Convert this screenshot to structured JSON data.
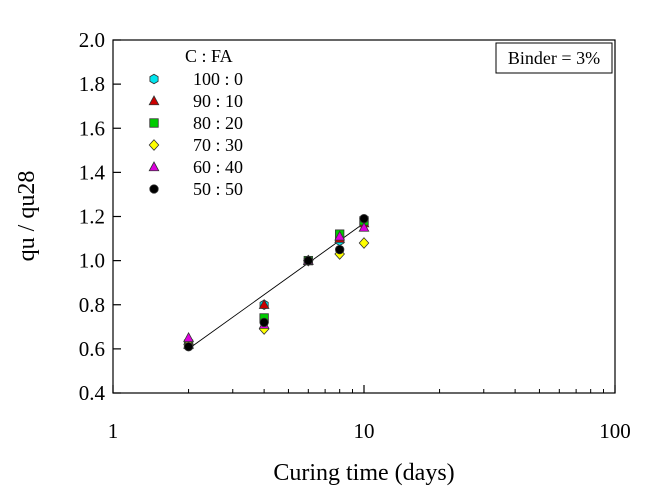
{
  "chart_data": {
    "type": "scatter",
    "title": "",
    "xlabel": "Curing time (days)",
    "ylabel": "qu / qu28",
    "xscale": "log",
    "xlim": [
      1,
      100
    ],
    "ylim": [
      0.4,
      2.0
    ],
    "x_ticks": [
      1,
      10,
      100
    ],
    "x_tick_labels": [
      "1",
      "10",
      "100"
    ],
    "y_ticks": [
      0.4,
      0.6,
      0.8,
      1.0,
      1.2,
      1.4,
      1.6,
      1.8,
      2.0
    ],
    "y_tick_labels": [
      "0.4",
      "0.6",
      "0.8",
      "1.0",
      "1.2",
      "1.4",
      "1.6",
      "1.8",
      "2.0"
    ],
    "grid": false,
    "legend": {
      "title": "C : FA",
      "position": "top-left"
    },
    "annotation": "Binder = 3%",
    "series": [
      {
        "name": "100 : 0",
        "marker": "hexagon",
        "color": "#00e5ee",
        "x": [
          2,
          4,
          6,
          8,
          10
        ],
        "y": [
          0.63,
          0.8,
          1.0,
          1.09,
          1.17
        ]
      },
      {
        "name": "90 : 10",
        "marker": "triangle",
        "color": "#cc0000",
        "x": [
          2,
          4,
          6,
          8,
          10
        ],
        "y": [
          0.62,
          0.8,
          1.0,
          1.1,
          1.17
        ]
      },
      {
        "name": "80 : 20",
        "marker": "square",
        "color": "#00cc00",
        "x": [
          2,
          4,
          6,
          8,
          10
        ],
        "y": [
          0.62,
          0.74,
          1.0,
          1.12,
          1.18
        ]
      },
      {
        "name": "70 : 30",
        "marker": "diamond",
        "color": "#ffff00",
        "x": [
          2,
          4,
          6,
          8,
          10
        ],
        "y": [
          0.62,
          0.69,
          1.0,
          1.03,
          1.08
        ]
      },
      {
        "name": "60 : 40",
        "marker": "triangle",
        "color": "#dd00dd",
        "x": [
          2,
          4,
          6,
          8,
          10
        ],
        "y": [
          0.65,
          0.71,
          1.0,
          1.11,
          1.15
        ]
      },
      {
        "name": "50 : 50",
        "marker": "circle",
        "color": "#000000",
        "x": [
          2,
          4,
          6,
          8,
          10
        ],
        "y": [
          0.61,
          0.72,
          1.0,
          1.05,
          1.19
        ]
      }
    ],
    "trendline": {
      "x": [
        2,
        10
      ],
      "y": [
        0.6,
        1.17
      ]
    }
  }
}
